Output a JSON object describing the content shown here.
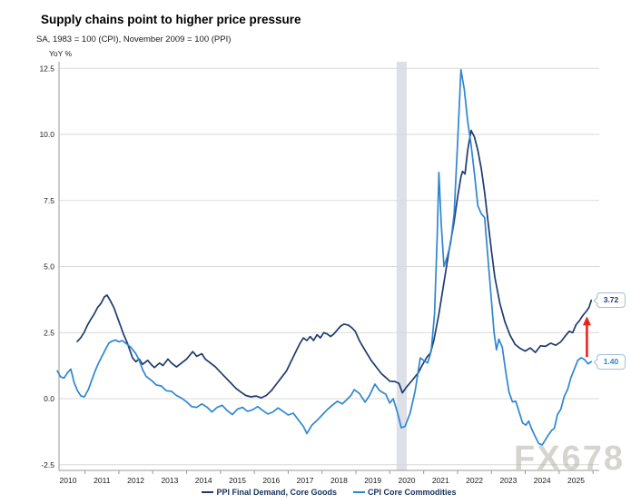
{
  "header": {
    "title": "Supply chains point to higher price pressure",
    "subtitle": "SA, 1983 = 100 (CPI), November 2009 = 100 (PPI)"
  },
  "watermark": {
    "text": "FX678",
    "color": "#b5b1a8"
  },
  "chart_data": {
    "type": "line",
    "title": "Supply chains point to higher price pressure",
    "subtitle": "SA, 1983 = 100 (CPI), November 2009 = 100 (PPI)",
    "ylabel": "YoY %",
    "grid": true,
    "legend_position": "bottom",
    "y_axis": {
      "ticks": [
        12.5,
        10.0,
        7.5,
        5.0,
        2.5,
        0.0,
        -2.5
      ],
      "tick_labels": [
        "12.5",
        "10.0",
        "7.5",
        "5.0",
        "2.5",
        "0.0",
        "-2.5"
      ],
      "range": [
        -2.5,
        12.5
      ]
    },
    "x_axis": {
      "tick_labels": [
        "2010",
        "2011",
        "2012",
        "2013",
        "2014",
        "2015",
        "2016",
        "2017",
        "2018",
        "2019",
        "2020",
        "2021",
        "2022",
        "2023",
        "2024",
        "2025"
      ],
      "label_color": "#1a1a1a"
    },
    "recession_band": {
      "from": 2020.2,
      "to": 2020.5,
      "color": "#dde0e8"
    },
    "colors": {
      "grid": "#d9d9d9",
      "axis": "#9a9a9a",
      "arrow": "#e8251d"
    },
    "series": [
      {
        "name": "PPI Final Demand, Core Goods",
        "color": "#1f3b6e",
        "end_value": 3.72,
        "points": [
          [
            2010.77,
            2.16
          ],
          [
            2010.87,
            2.3
          ],
          [
            2010.97,
            2.5
          ],
          [
            2011.07,
            2.78
          ],
          [
            2011.17,
            3.0
          ],
          [
            2011.27,
            3.2
          ],
          [
            2011.37,
            3.45
          ],
          [
            2011.47,
            3.6
          ],
          [
            2011.57,
            3.85
          ],
          [
            2011.65,
            3.92
          ],
          [
            2011.75,
            3.7
          ],
          [
            2011.85,
            3.45
          ],
          [
            2011.95,
            3.1
          ],
          [
            2012.05,
            2.75
          ],
          [
            2012.15,
            2.4
          ],
          [
            2012.25,
            2.1
          ],
          [
            2012.4,
            1.55
          ],
          [
            2012.5,
            1.4
          ],
          [
            2012.6,
            1.5
          ],
          [
            2012.7,
            1.3
          ],
          [
            2012.85,
            1.45
          ],
          [
            2012.95,
            1.3
          ],
          [
            2013.05,
            1.18
          ],
          [
            2013.2,
            1.35
          ],
          [
            2013.3,
            1.25
          ],
          [
            2013.45,
            1.5
          ],
          [
            2013.55,
            1.35
          ],
          [
            2013.7,
            1.2
          ],
          [
            2013.85,
            1.35
          ],
          [
            2014.0,
            1.5
          ],
          [
            2014.18,
            1.78
          ],
          [
            2014.3,
            1.6
          ],
          [
            2014.45,
            1.7
          ],
          [
            2014.55,
            1.5
          ],
          [
            2014.7,
            1.35
          ],
          [
            2014.85,
            1.2
          ],
          [
            2015.0,
            1.0
          ],
          [
            2015.15,
            0.8
          ],
          [
            2015.3,
            0.6
          ],
          [
            2015.45,
            0.4
          ],
          [
            2015.6,
            0.25
          ],
          [
            2015.75,
            0.12
          ],
          [
            2015.9,
            0.07
          ],
          [
            2016.05,
            0.1
          ],
          [
            2016.2,
            0.03
          ],
          [
            2016.35,
            0.12
          ],
          [
            2016.5,
            0.3
          ],
          [
            2016.65,
            0.55
          ],
          [
            2016.8,
            0.8
          ],
          [
            2016.95,
            1.05
          ],
          [
            2017.1,
            1.45
          ],
          [
            2017.25,
            1.85
          ],
          [
            2017.35,
            2.1
          ],
          [
            2017.45,
            2.3
          ],
          [
            2017.55,
            2.2
          ],
          [
            2017.65,
            2.35
          ],
          [
            2017.75,
            2.2
          ],
          [
            2017.85,
            2.42
          ],
          [
            2017.95,
            2.3
          ],
          [
            2018.05,
            2.5
          ],
          [
            2018.15,
            2.45
          ],
          [
            2018.25,
            2.35
          ],
          [
            2018.35,
            2.45
          ],
          [
            2018.45,
            2.6
          ],
          [
            2018.55,
            2.75
          ],
          [
            2018.65,
            2.82
          ],
          [
            2018.78,
            2.78
          ],
          [
            2018.88,
            2.68
          ],
          [
            2018.98,
            2.55
          ],
          [
            2019.1,
            2.2
          ],
          [
            2019.2,
            1.98
          ],
          [
            2019.32,
            1.72
          ],
          [
            2019.45,
            1.45
          ],
          [
            2019.6,
            1.2
          ],
          [
            2019.75,
            0.95
          ],
          [
            2019.9,
            0.78
          ],
          [
            2020.0,
            0.66
          ],
          [
            2020.15,
            0.65
          ],
          [
            2020.27,
            0.58
          ],
          [
            2020.37,
            0.22
          ],
          [
            2020.5,
            0.45
          ],
          [
            2020.68,
            0.72
          ],
          [
            2020.85,
            1.0
          ],
          [
            2020.95,
            1.25
          ],
          [
            2021.1,
            1.58
          ],
          [
            2021.2,
            1.72
          ],
          [
            2021.3,
            2.2
          ],
          [
            2021.45,
            3.2
          ],
          [
            2021.6,
            4.4
          ],
          [
            2021.75,
            5.6
          ],
          [
            2021.9,
            6.7
          ],
          [
            2022.0,
            7.6
          ],
          [
            2022.1,
            8.4
          ],
          [
            2022.15,
            8.6
          ],
          [
            2022.22,
            8.5
          ],
          [
            2022.3,
            9.4
          ],
          [
            2022.4,
            10.15
          ],
          [
            2022.5,
            9.9
          ],
          [
            2022.6,
            9.4
          ],
          [
            2022.7,
            8.7
          ],
          [
            2022.8,
            7.8
          ],
          [
            2022.9,
            6.7
          ],
          [
            2023.0,
            5.6
          ],
          [
            2023.1,
            4.6
          ],
          [
            2023.25,
            3.6
          ],
          [
            2023.4,
            2.9
          ],
          [
            2023.55,
            2.4
          ],
          [
            2023.7,
            2.05
          ],
          [
            2023.85,
            1.9
          ],
          [
            2024.0,
            1.8
          ],
          [
            2024.15,
            1.92
          ],
          [
            2024.3,
            1.75
          ],
          [
            2024.45,
            2.0
          ],
          [
            2024.6,
            1.98
          ],
          [
            2024.75,
            2.1
          ],
          [
            2024.9,
            2.02
          ],
          [
            2025.05,
            2.15
          ],
          [
            2025.2,
            2.4
          ],
          [
            2025.3,
            2.55
          ],
          [
            2025.4,
            2.5
          ],
          [
            2025.5,
            2.8
          ],
          [
            2025.6,
            2.95
          ],
          [
            2025.7,
            3.15
          ],
          [
            2025.8,
            3.3
          ],
          [
            2025.88,
            3.45
          ],
          [
            2025.95,
            3.72
          ]
        ]
      },
      {
        "name": "CPI Core Commodities",
        "color": "#2e86d1",
        "end_value": 1.4,
        "points": [
          [
            2010.18,
            1.05
          ],
          [
            2010.28,
            0.82
          ],
          [
            2010.38,
            0.78
          ],
          [
            2010.48,
            0.98
          ],
          [
            2010.58,
            1.12
          ],
          [
            2010.68,
            0.6
          ],
          [
            2010.78,
            0.3
          ],
          [
            2010.88,
            0.1
          ],
          [
            2010.98,
            0.07
          ],
          [
            2011.1,
            0.35
          ],
          [
            2011.2,
            0.7
          ],
          [
            2011.3,
            1.05
          ],
          [
            2011.4,
            1.35
          ],
          [
            2011.5,
            1.6
          ],
          [
            2011.6,
            1.85
          ],
          [
            2011.7,
            2.1
          ],
          [
            2011.8,
            2.18
          ],
          [
            2011.9,
            2.22
          ],
          [
            2012.0,
            2.15
          ],
          [
            2012.1,
            2.2
          ],
          [
            2012.2,
            2.1
          ],
          [
            2012.35,
            1.95
          ],
          [
            2012.5,
            1.7
          ],
          [
            2012.6,
            1.45
          ],
          [
            2012.7,
            1.1
          ],
          [
            2012.8,
            0.85
          ],
          [
            2012.9,
            0.75
          ],
          [
            2013.0,
            0.65
          ],
          [
            2013.1,
            0.52
          ],
          [
            2013.25,
            0.48
          ],
          [
            2013.4,
            0.3
          ],
          [
            2013.55,
            0.28
          ],
          [
            2013.7,
            0.12
          ],
          [
            2013.85,
            0.02
          ],
          [
            2014.0,
            -0.12
          ],
          [
            2014.15,
            -0.3
          ],
          [
            2014.3,
            -0.33
          ],
          [
            2014.45,
            -0.2
          ],
          [
            2014.6,
            -0.32
          ],
          [
            2014.75,
            -0.5
          ],
          [
            2014.9,
            -0.33
          ],
          [
            2015.05,
            -0.25
          ],
          [
            2015.2,
            -0.45
          ],
          [
            2015.35,
            -0.6
          ],
          [
            2015.5,
            -0.4
          ],
          [
            2015.65,
            -0.33
          ],
          [
            2015.8,
            -0.48
          ],
          [
            2015.95,
            -0.42
          ],
          [
            2016.1,
            -0.3
          ],
          [
            2016.25,
            -0.45
          ],
          [
            2016.4,
            -0.58
          ],
          [
            2016.55,
            -0.5
          ],
          [
            2016.7,
            -0.35
          ],
          [
            2016.85,
            -0.48
          ],
          [
            2017.0,
            -0.62
          ],
          [
            2017.15,
            -0.55
          ],
          [
            2017.3,
            -0.8
          ],
          [
            2017.45,
            -1.05
          ],
          [
            2017.55,
            -1.32
          ],
          [
            2017.7,
            -1.0
          ],
          [
            2017.85,
            -0.82
          ],
          [
            2018.0,
            -0.62
          ],
          [
            2018.15,
            -0.42
          ],
          [
            2018.3,
            -0.25
          ],
          [
            2018.45,
            -0.1
          ],
          [
            2018.6,
            -0.2
          ],
          [
            2018.72,
            -0.05
          ],
          [
            2018.85,
            0.12
          ],
          [
            2018.95,
            0.34
          ],
          [
            2019.1,
            0.2
          ],
          [
            2019.27,
            -0.13
          ],
          [
            2019.4,
            0.12
          ],
          [
            2019.56,
            0.55
          ],
          [
            2019.7,
            0.3
          ],
          [
            2019.88,
            0.17
          ],
          [
            2020.0,
            -0.17
          ],
          [
            2020.1,
            0.0
          ],
          [
            2020.22,
            -0.5
          ],
          [
            2020.34,
            -1.1
          ],
          [
            2020.45,
            -1.05
          ],
          [
            2020.6,
            -0.55
          ],
          [
            2020.75,
            0.3
          ],
          [
            2020.9,
            1.54
          ],
          [
            2021.0,
            1.45
          ],
          [
            2021.12,
            1.35
          ],
          [
            2021.22,
            1.8
          ],
          [
            2021.32,
            3.2
          ],
          [
            2021.4,
            6.2
          ],
          [
            2021.45,
            8.56
          ],
          [
            2021.52,
            6.6
          ],
          [
            2021.6,
            5.0
          ],
          [
            2021.7,
            5.4
          ],
          [
            2021.8,
            5.9
          ],
          [
            2021.9,
            7.0
          ],
          [
            2022.0,
            9.6
          ],
          [
            2022.1,
            12.45
          ],
          [
            2022.2,
            11.7
          ],
          [
            2022.3,
            10.5
          ],
          [
            2022.4,
            9.6
          ],
          [
            2022.5,
            8.5
          ],
          [
            2022.6,
            7.3
          ],
          [
            2022.7,
            7.0
          ],
          [
            2022.8,
            6.85
          ],
          [
            2022.9,
            5.3
          ],
          [
            2023.0,
            3.7
          ],
          [
            2023.08,
            2.5
          ],
          [
            2023.15,
            1.85
          ],
          [
            2023.22,
            2.25
          ],
          [
            2023.32,
            1.95
          ],
          [
            2023.42,
            1.05
          ],
          [
            2023.52,
            0.25
          ],
          [
            2023.62,
            -0.12
          ],
          [
            2023.72,
            -0.1
          ],
          [
            2023.82,
            -0.5
          ],
          [
            2023.92,
            -0.92
          ],
          [
            2024.02,
            -1.0
          ],
          [
            2024.1,
            -0.85
          ],
          [
            2024.18,
            -1.12
          ],
          [
            2024.28,
            -1.4
          ],
          [
            2024.4,
            -1.7
          ],
          [
            2024.5,
            -1.75
          ],
          [
            2024.6,
            -1.55
          ],
          [
            2024.68,
            -1.38
          ],
          [
            2024.78,
            -1.2
          ],
          [
            2024.86,
            -1.12
          ],
          [
            2024.95,
            -0.6
          ],
          [
            2025.05,
            -0.4
          ],
          [
            2025.15,
            0.08
          ],
          [
            2025.25,
            0.35
          ],
          [
            2025.35,
            0.8
          ],
          [
            2025.45,
            1.12
          ],
          [
            2025.55,
            1.45
          ],
          [
            2025.65,
            1.55
          ],
          [
            2025.75,
            1.48
          ],
          [
            2025.85,
            1.32
          ],
          [
            2025.95,
            1.4
          ]
        ]
      }
    ],
    "annotations": [
      {
        "type": "up-arrow",
        "x": 2025.82,
        "y_from": 1.58,
        "y_to": 3.05,
        "color": "#e8251d"
      }
    ],
    "callouts": [
      {
        "label": "3.72",
        "value": 3.72,
        "color": "#1f3b6e"
      },
      {
        "label": "1.40",
        "value": 1.4,
        "color": "#2e86d1"
      }
    ]
  }
}
